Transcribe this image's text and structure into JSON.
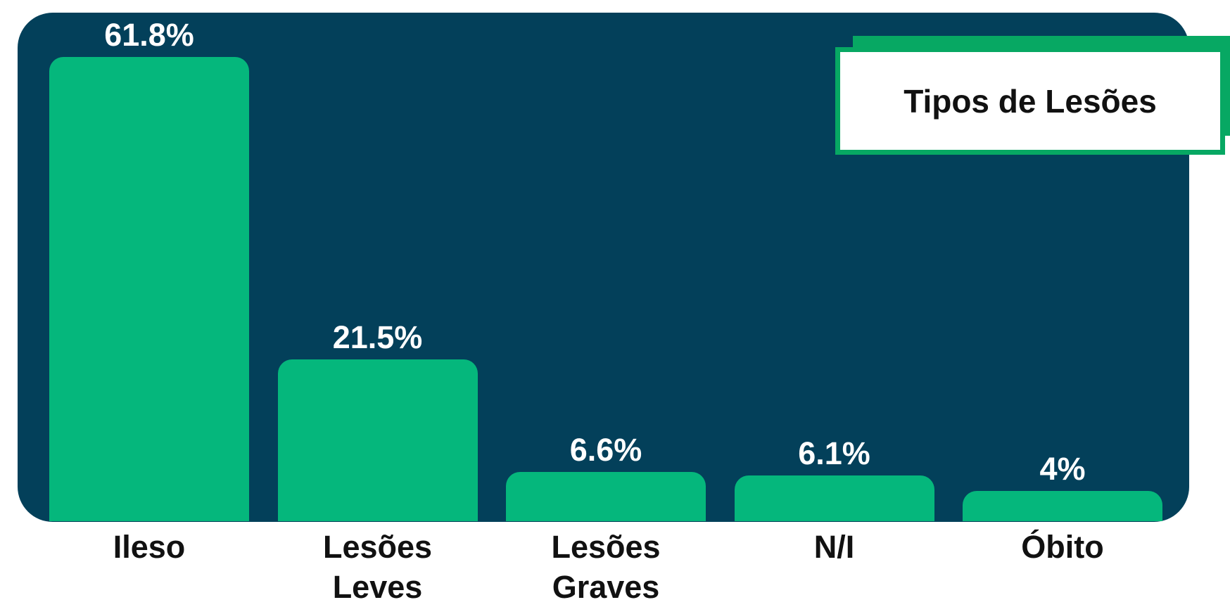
{
  "chart_data": {
    "type": "bar",
    "title": "Tipos de Lesões",
    "categories": [
      "Ileso",
      "Lesões Leves",
      "Lesões Graves",
      "N/I",
      "Óbito"
    ],
    "values": [
      61.8,
      21.5,
      6.6,
      6.1,
      4
    ],
    "value_labels": [
      "61.8%",
      "21.5%",
      "6.6%",
      "6.1%",
      "4%"
    ],
    "color": "#05b77c"
  }
}
